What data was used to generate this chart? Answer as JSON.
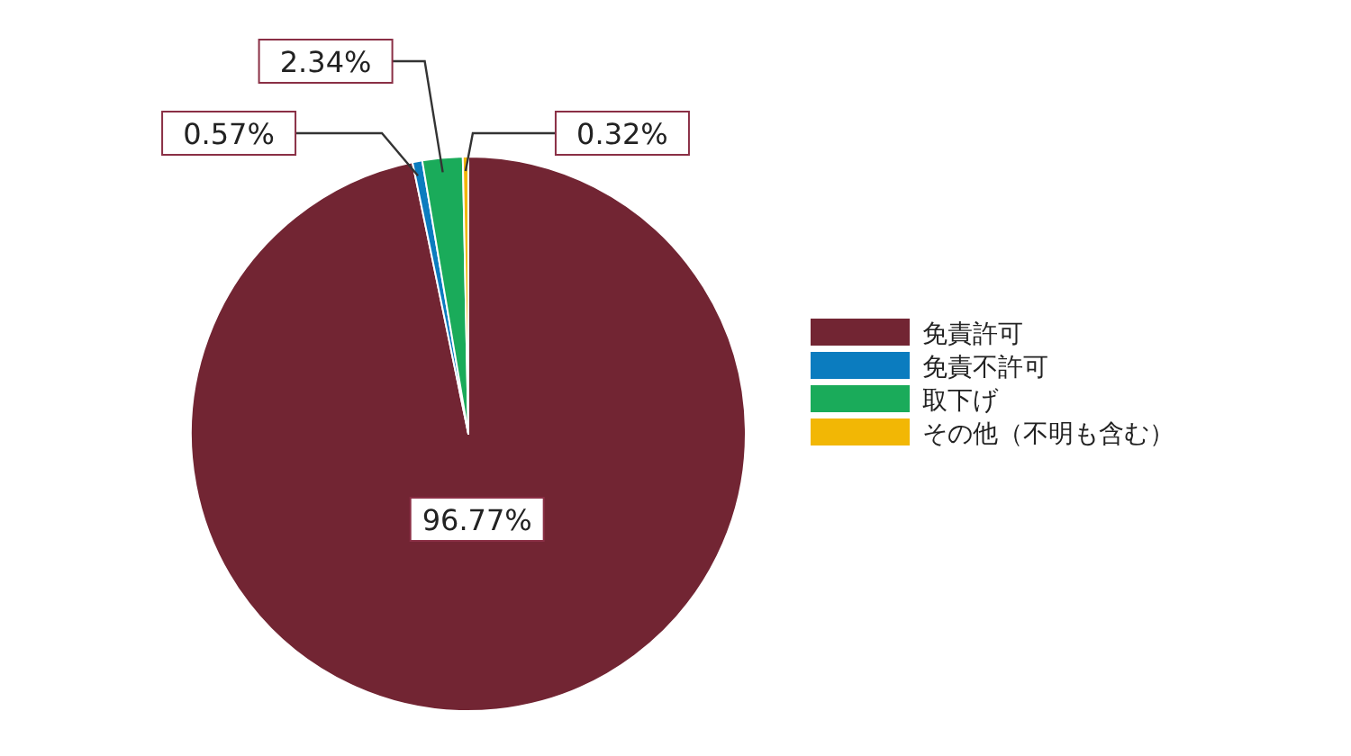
{
  "chart_data": {
    "type": "pie",
    "categories": [
      "免責許可",
      "免責不許可",
      "取下げ",
      "その他（不明も含む）"
    ],
    "values": [
      96.77,
      0.57,
      2.34,
      0.32
    ],
    "colors": [
      "#722533",
      "#0b7cbf",
      "#1aab5a",
      "#f2b705"
    ],
    "value_labels": [
      "96.77%",
      "0.57%",
      "2.34%",
      "0.32%"
    ],
    "legend": "right"
  }
}
